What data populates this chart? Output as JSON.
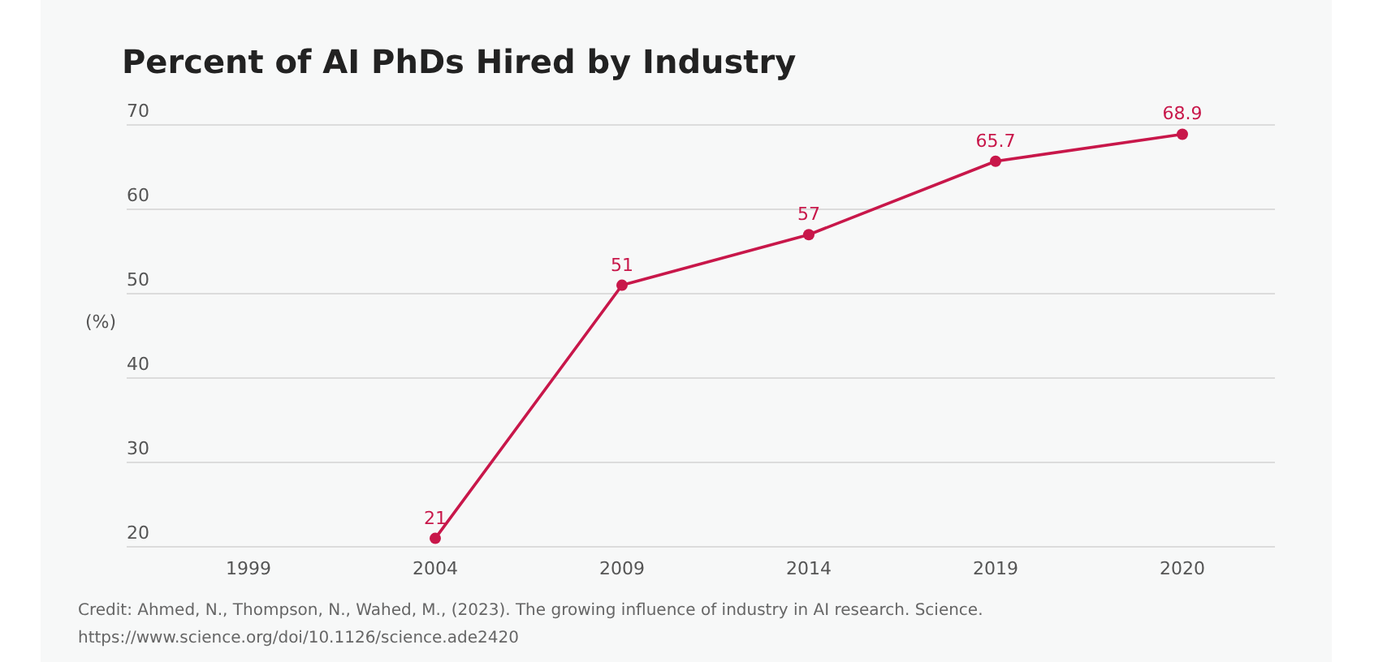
{
  "chart_data": {
    "type": "line",
    "title": "Percent of AI PhDs Hired by Industry",
    "ylabel": "(%)",
    "categories": [
      "1999",
      "2004",
      "2009",
      "2014",
      "2019",
      "2020"
    ],
    "series": [
      {
        "color": "#c8174a",
        "values": [
          null,
          21,
          51,
          57,
          65.7,
          68.9
        ]
      }
    ],
    "ylim": [
      20,
      70
    ],
    "yticks": [
      20,
      30,
      40,
      50,
      60,
      70
    ],
    "grid": "y",
    "marker": "circle",
    "line_style": "solid",
    "data_labels": true,
    "annotations": [
      "Credit: Ahmed, N., Thompson, N., Wahed, M., (2023). The growing influence of industry in AI research. Science.",
      "https://www.science.org/doi/10.1126/science.ade2420"
    ]
  }
}
